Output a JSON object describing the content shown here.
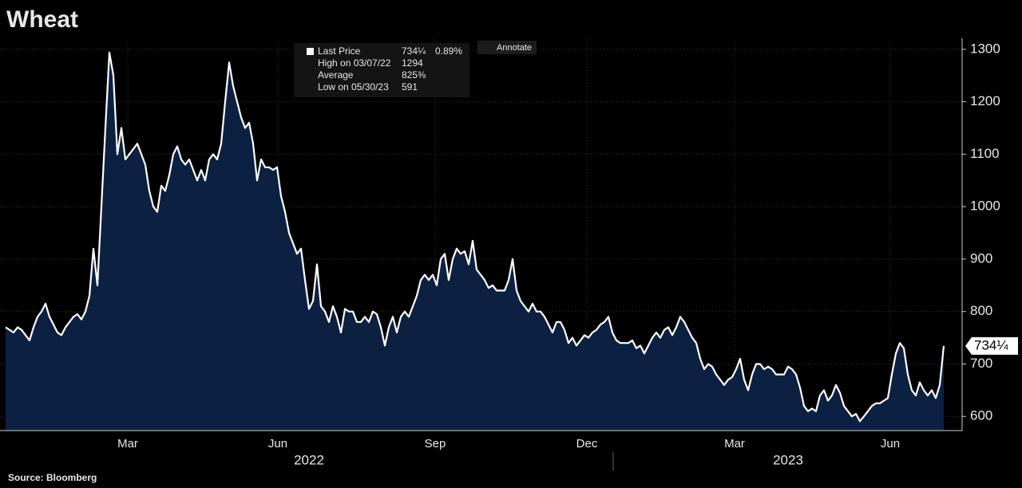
{
  "chart_data": {
    "type": "area",
    "title": "Wheat",
    "source": "Source: Bloomberg",
    "legend": [
      {
        "label": "Last Price",
        "value": "734¼",
        "change": "0.89%"
      },
      {
        "label": "High on 03/07/22",
        "value": "1294"
      },
      {
        "label": "Average",
        "value": "825⅜"
      },
      {
        "label": "Low on 05/30/23",
        "value": "591"
      }
    ],
    "button": "Annotate",
    "series": [
      {
        "name": "Last Price",
        "color": "#ffffff",
        "fill": "#0c2142",
        "values": [
          770,
          765,
          760,
          770,
          765,
          755,
          745,
          770,
          790,
          800,
          815,
          790,
          775,
          760,
          755,
          770,
          780,
          790,
          795,
          785,
          800,
          830,
          920,
          850,
          1000,
          1150,
          1294,
          1250,
          1100,
          1150,
          1090,
          1100,
          1110,
          1120,
          1100,
          1080,
          1030,
          1000,
          990,
          1040,
          1030,
          1060,
          1100,
          1115,
          1090,
          1080,
          1090,
          1070,
          1050,
          1070,
          1050,
          1090,
          1100,
          1090,
          1120,
          1200,
          1275,
          1230,
          1200,
          1170,
          1150,
          1160,
          1120,
          1050,
          1090,
          1075,
          1075,
          1070,
          1075,
          1020,
          990,
          950,
          930,
          910,
          920,
          860,
          805,
          820,
          890,
          810,
          800,
          780,
          810,
          790,
          760,
          805,
          800,
          800,
          780,
          780,
          790,
          780,
          800,
          795,
          770,
          735,
          770,
          790,
          760,
          790,
          800,
          790,
          810,
          830,
          860,
          870,
          860,
          870,
          850,
          900,
          910,
          860,
          900,
          920,
          910,
          915,
          890,
          935,
          880,
          870,
          860,
          845,
          850,
          840,
          840,
          840,
          860,
          900,
          840,
          820,
          810,
          800,
          815,
          800,
          800,
          790,
          775,
          760,
          780,
          780,
          765,
          740,
          750,
          735,
          745,
          755,
          750,
          760,
          765,
          775,
          780,
          790,
          760,
          745,
          740,
          740,
          740,
          745,
          730,
          735,
          720,
          735,
          750,
          760,
          750,
          765,
          770,
          755,
          770,
          790,
          780,
          765,
          750,
          740,
          710,
          690,
          700,
          695,
          680,
          670,
          660,
          670,
          675,
          690,
          710,
          670,
          650,
          680,
          700,
          700,
          690,
          695,
          690,
          680,
          680,
          680,
          695,
          690,
          680,
          655,
          620,
          610,
          615,
          610,
          640,
          650,
          630,
          640,
          660,
          645,
          620,
          610,
          600,
          605,
          591,
          600,
          610,
          620,
          625,
          625,
          630,
          635,
          680,
          720,
          740,
          730,
          680,
          650,
          640,
          665,
          650,
          640,
          650,
          635,
          660,
          734.25
        ]
      }
    ],
    "xlim": [
      -1.4,
      239.6
    ],
    "xticks": [
      {
        "value": 30.6,
        "label": "Mar"
      },
      {
        "value": 68.2,
        "label": "Jun"
      },
      {
        "value": 107.6,
        "label": "Sep"
      },
      {
        "value": 145.6,
        "label": "Dec"
      },
      {
        "value": 182.6,
        "label": "Mar"
      },
      {
        "value": 221.6,
        "label": "Jun"
      }
    ],
    "year_labels": [
      {
        "value": 76,
        "label": "2022"
      },
      {
        "value": 196,
        "label": "2023"
      }
    ],
    "ylim": [
      573,
      1321
    ],
    "yticks": [
      600,
      700,
      800,
      900,
      1000,
      1100,
      1200,
      1300
    ],
    "grid": true
  }
}
